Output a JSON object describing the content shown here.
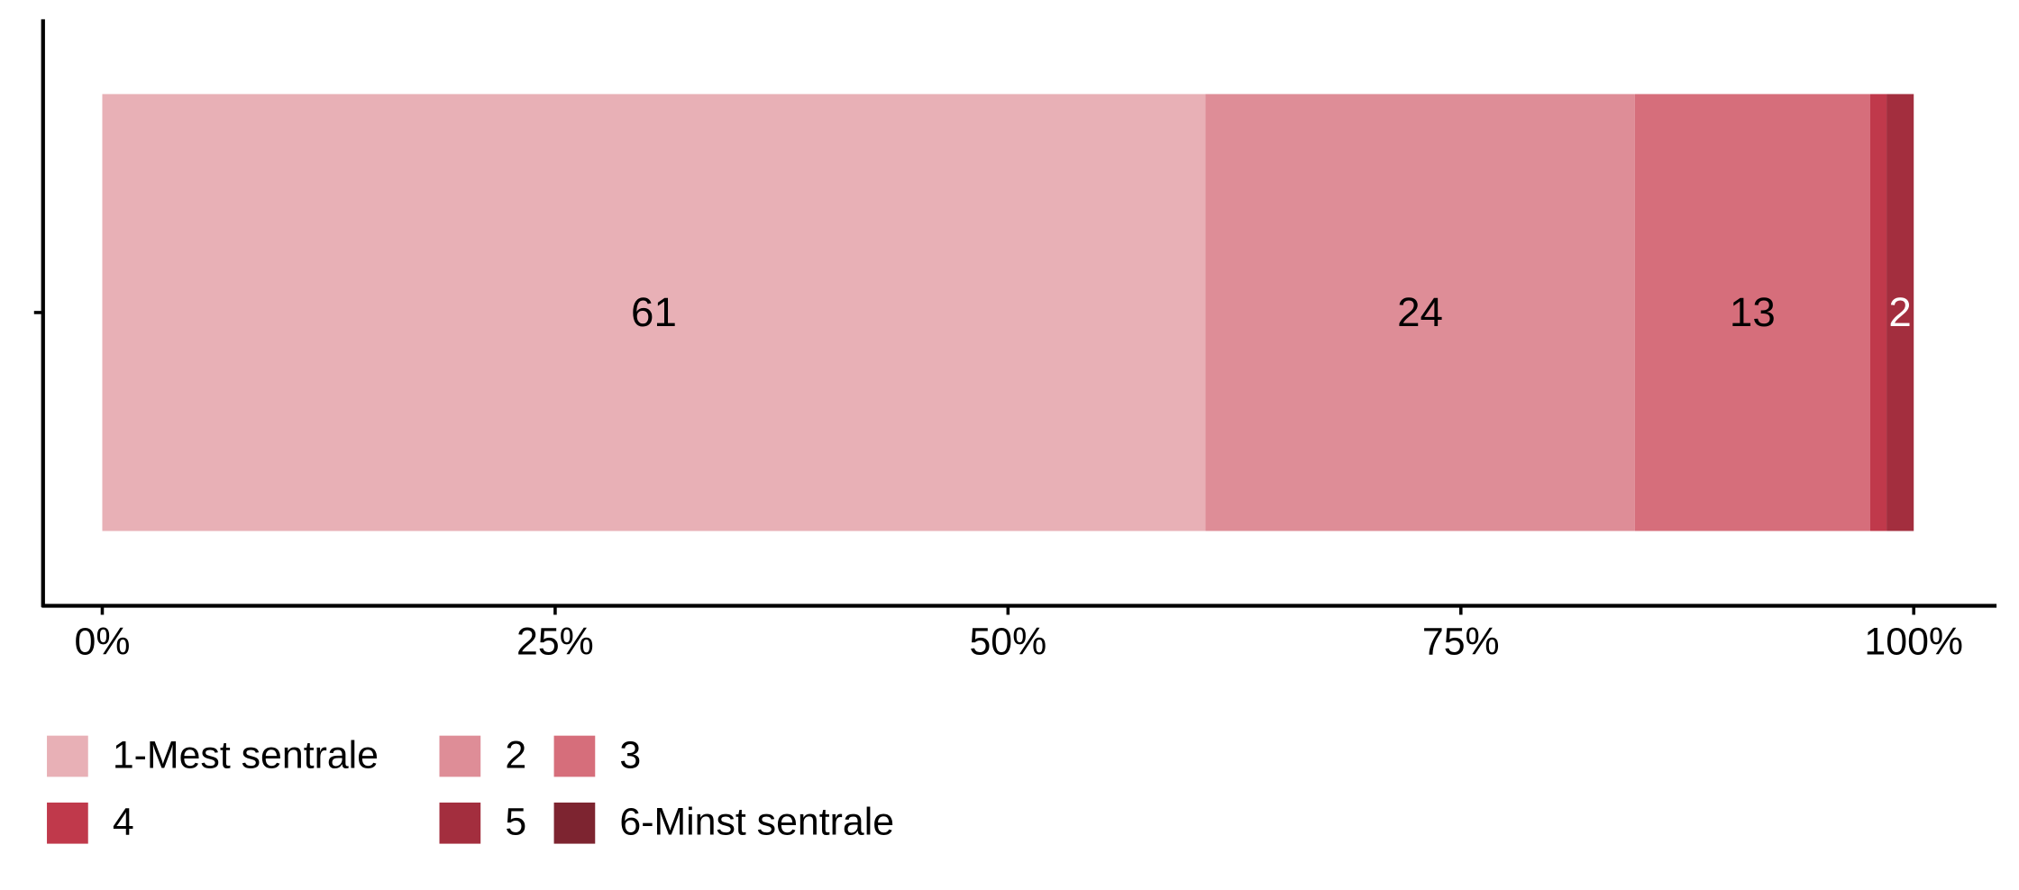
{
  "chart_data": {
    "type": "stacked-barh",
    "categories": [
      null
    ],
    "series": [
      {
        "name": "1-Mest sentrale",
        "color": "#e8b0b6",
        "values": [
          60.9
        ],
        "value_labels": [
          "61"
        ],
        "label_color": "#000000"
      },
      {
        "name": "2",
        "color": "#de8d97",
        "values": [
          23.7
        ],
        "value_labels": [
          "24"
        ],
        "label_color": "#000000"
      },
      {
        "name": "3",
        "color": "#d66e7b",
        "values": [
          13
        ],
        "value_labels": [
          "13"
        ],
        "label_color": "#000000"
      },
      {
        "name": "4",
        "color": "#c0394b",
        "values": [
          0.9
        ]
      },
      {
        "name": "5",
        "color": "#a32e3e",
        "values": [
          1.5
        ],
        "value_labels": [
          "2"
        ],
        "label_color": "#ffffff"
      },
      {
        "name": "6-Minst sentrale",
        "color": "#7d2430",
        "values": [
          0
        ]
      }
    ],
    "xlim": [
      -3.27,
      104.5
    ],
    "xticks": [
      {
        "value": 0,
        "label": "0%"
      },
      {
        "value": 25,
        "label": "25%"
      },
      {
        "value": 50,
        "label": "50%"
      },
      {
        "value": 75,
        "label": "75%"
      },
      {
        "value": 100,
        "label": "100%"
      }
    ],
    "legend": "bottom"
  }
}
